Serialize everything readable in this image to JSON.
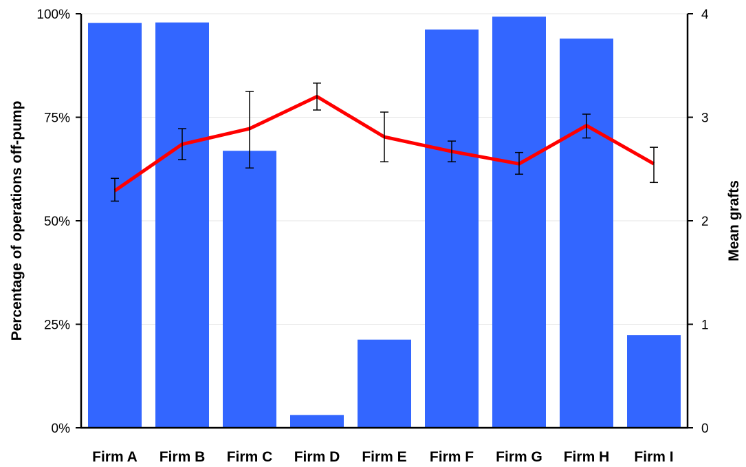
{
  "chart_data": {
    "type": "bar",
    "title": "",
    "categories": [
      "Firm A",
      "Firm B",
      "Firm C",
      "Firm D",
      "Firm E",
      "Firm F",
      "Firm G",
      "Firm H",
      "Firm I"
    ],
    "series": [
      {
        "type": "bar",
        "axis": "left",
        "values": [
          97.8,
          97.9,
          66.9,
          3.1,
          21.3,
          96.2,
          99.3,
          94.0,
          22.4
        ]
      },
      {
        "type": "line",
        "axis": "right",
        "values": [
          2.29,
          2.74,
          2.89,
          3.2,
          2.81,
          2.67,
          2.55,
          2.92,
          2.55
        ],
        "error_low": [
          2.19,
          2.59,
          2.51,
          3.07,
          2.57,
          2.57,
          2.45,
          2.8,
          2.37
        ],
        "error_high": [
          2.41,
          2.89,
          3.25,
          3.33,
          3.05,
          2.77,
          2.66,
          3.03,
          2.71
        ]
      }
    ],
    "ylabel_left": "Percentage of operations off-pump",
    "ylabel_right": "Mean grafts",
    "ylim_left": [
      0,
      100
    ],
    "ylim_right": [
      0,
      4
    ],
    "yticks_left": [
      "0%",
      "25%",
      "50%",
      "75%",
      "100%"
    ],
    "yticks_right": [
      "0",
      "1",
      "2",
      "3",
      "4"
    ],
    "grid": true,
    "colors": {
      "bar": "#3366ff",
      "line": "#ff0000"
    }
  }
}
